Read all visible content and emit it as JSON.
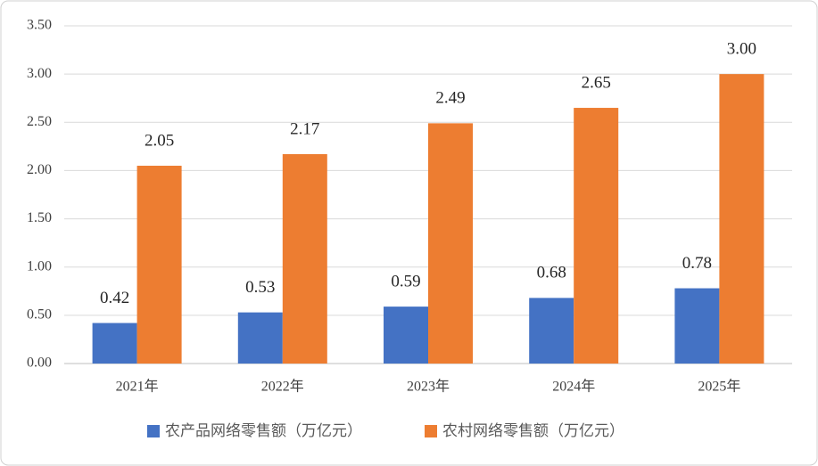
{
  "chart_data": {
    "type": "bar",
    "categories": [
      "2021年",
      "2022年",
      "2023年",
      "2024年",
      "2025年"
    ],
    "series": [
      {
        "name": "农产品网络零售额（万亿元）",
        "color": "#4472c4",
        "values": [
          0.42,
          0.53,
          0.59,
          0.68,
          0.78
        ],
        "value_labels": [
          "0.42",
          "0.53",
          "0.59",
          "0.68",
          "0.78"
        ]
      },
      {
        "name": "农村网络零售额（万亿元）",
        "color": "#ed7d31",
        "values": [
          2.05,
          2.17,
          2.49,
          2.65,
          3.0
        ],
        "value_labels": [
          "2.05",
          "2.17",
          "2.49",
          "2.65",
          "3.00"
        ]
      }
    ],
    "ylim": [
      0,
      3.5
    ],
    "yticks": [
      {
        "value": 0,
        "label": "0.00"
      },
      {
        "value": 0.5,
        "label": "0.50"
      },
      {
        "value": 1,
        "label": "1.00"
      },
      {
        "value": 1.5,
        "label": "1.50"
      },
      {
        "value": 2,
        "label": "2.00"
      },
      {
        "value": 2.5,
        "label": "2.50"
      },
      {
        "value": 3,
        "label": "3.00"
      },
      {
        "value": 3.5,
        "label": "3.50"
      }
    ],
    "grid": true,
    "legend": "bottom"
  }
}
